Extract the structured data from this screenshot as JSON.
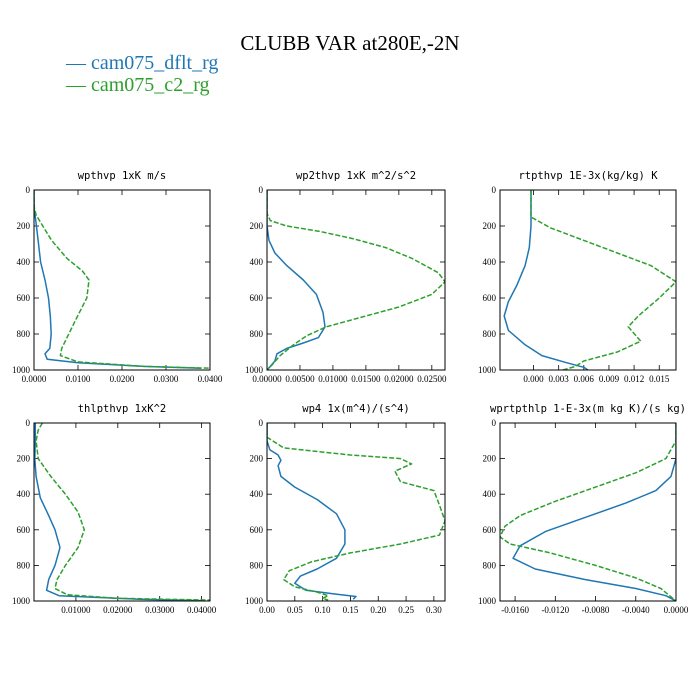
{
  "title": "CLUBB VAR at280E,-2N",
  "legend": [
    {
      "label": "— cam075_dflt_rg",
      "color": "#1f77b4"
    },
    {
      "label": "— cam075_c2_rg",
      "color": "#2ca02c"
    }
  ],
  "chart_data": [
    {
      "type": "line",
      "title": "wpthvp  1xK m/s",
      "xlim": [
        0,
        0.04
      ],
      "ylim": [
        1000,
        0
      ],
      "xticks": [
        0,
        0.01,
        0.02,
        0.03,
        0.04
      ],
      "xtick_labels": [
        "0.0000",
        "0.0100",
        "0.0200",
        "0.0300",
        "0.0400"
      ],
      "yticks": [
        0,
        200,
        400,
        600,
        800,
        1000
      ],
      "ytick_labels": [
        "0",
        "200",
        "400",
        "600",
        "800",
        "1000"
      ],
      "series": [
        {
          "name": "cam075_dflt_rg",
          "color": "#1f77b4",
          "dashed": false,
          "points": [
            [
              0.0,
              0
            ],
            [
              0.0,
              100
            ],
            [
              0.0003,
              150
            ],
            [
              0.0008,
              250
            ],
            [
              0.0015,
              400
            ],
            [
              0.0025,
              500
            ],
            [
              0.0033,
              600
            ],
            [
              0.0037,
              700
            ],
            [
              0.0039,
              800
            ],
            [
              0.0036,
              880
            ],
            [
              0.0025,
              910
            ],
            [
              0.003,
              940
            ],
            [
              0.01,
              960
            ],
            [
              0.025,
              980
            ],
            [
              0.038,
              990
            ]
          ]
        },
        {
          "name": "cam075_c2_rg",
          "color": "#2ca02c",
          "dashed": true,
          "points": [
            [
              0.0,
              0
            ],
            [
              0.0,
              50
            ],
            [
              0.0001,
              100
            ],
            [
              0.0005,
              140
            ],
            [
              0.002,
              200
            ],
            [
              0.004,
              280
            ],
            [
              0.0075,
              380
            ],
            [
              0.011,
              450
            ],
            [
              0.0125,
              500
            ],
            [
              0.012,
              600
            ],
            [
              0.0095,
              720
            ],
            [
              0.0075,
              820
            ],
            [
              0.0063,
              880
            ],
            [
              0.006,
              920
            ],
            [
              0.01,
              955
            ],
            [
              0.025,
              980
            ],
            [
              0.04,
              990
            ]
          ]
        }
      ]
    },
    {
      "type": "line",
      "title": "wp2thvp  1xK m^2/s^2",
      "xlim": [
        0,
        0.027
      ],
      "ylim": [
        1000,
        0
      ],
      "xticks": [
        0,
        0.005,
        0.01,
        0.015,
        0.02,
        0.025
      ],
      "xtick_labels": [
        "0.00000",
        "0.00500",
        "0.01000",
        "0.01500",
        "0.02000",
        "0.02500"
      ],
      "yticks": [
        0,
        200,
        400,
        600,
        800,
        1000
      ],
      "ytick_labels": [
        "0",
        "200",
        "400",
        "600",
        "800",
        "1000"
      ],
      "series": [
        {
          "name": "cam075_dflt_rg",
          "color": "#1f77b4",
          "dashed": false,
          "points": [
            [
              0.0,
              0
            ],
            [
              0.0,
              200
            ],
            [
              0.0003,
              280
            ],
            [
              0.0012,
              350
            ],
            [
              0.003,
              420
            ],
            [
              0.0055,
              500
            ],
            [
              0.0075,
              580
            ],
            [
              0.0085,
              680
            ],
            [
              0.0088,
              760
            ],
            [
              0.0078,
              820
            ],
            [
              0.0055,
              850
            ],
            [
              0.003,
              880
            ],
            [
              0.0015,
              910
            ],
            [
              0.0012,
              950
            ],
            [
              0.0005,
              980
            ],
            [
              0.0,
              1000
            ]
          ]
        },
        {
          "name": "cam075_c2_rg",
          "color": "#2ca02c",
          "dashed": true,
          "points": [
            [
              0.0,
              0
            ],
            [
              0.0,
              130
            ],
            [
              0.0005,
              170
            ],
            [
              0.003,
              200
            ],
            [
              0.008,
              230
            ],
            [
              0.013,
              270
            ],
            [
              0.018,
              320
            ],
            [
              0.022,
              380
            ],
            [
              0.026,
              460
            ],
            [
              0.027,
              510
            ],
            [
              0.025,
              580
            ],
            [
              0.02,
              650
            ],
            [
              0.014,
              710
            ],
            [
              0.009,
              760
            ],
            [
              0.006,
              810
            ],
            [
              0.004,
              860
            ],
            [
              0.002,
              920
            ],
            [
              0.0008,
              970
            ],
            [
              0.0,
              1000
            ]
          ]
        }
      ]
    },
    {
      "type": "line",
      "title": "rtpthvp  1E-3x(kg/kg) K",
      "xlim": [
        -0.004,
        0.017
      ],
      "ylim": [
        1000,
        0
      ],
      "xticks": [
        0,
        0.003,
        0.006,
        0.009,
        0.012,
        0.015
      ],
      "xtick_labels": [
        "0.000",
        "0.003",
        "0.006",
        "0.009",
        "0.012",
        "0.015"
      ],
      "yticks": [
        0,
        200,
        400,
        600,
        800,
        1000
      ],
      "ytick_labels": [
        "0",
        "200",
        "400",
        "600",
        "800",
        "1000"
      ],
      "series": [
        {
          "name": "cam075_dflt_rg",
          "color": "#1f77b4",
          "dashed": false,
          "points": [
            [
              -0.0003,
              0
            ],
            [
              -0.0003,
              200
            ],
            [
              -0.0005,
              320
            ],
            [
              -0.001,
              420
            ],
            [
              -0.002,
              530
            ],
            [
              -0.003,
              620
            ],
            [
              -0.0035,
              700
            ],
            [
              -0.003,
              780
            ],
            [
              -0.001,
              860
            ],
            [
              0.001,
              920
            ],
            [
              0.004,
              960
            ],
            [
              0.006,
              985
            ],
            [
              0.0065,
              1000
            ]
          ]
        },
        {
          "name": "cam075_c2_rg",
          "color": "#2ca02c",
          "dashed": true,
          "points": [
            [
              -0.0003,
              0
            ],
            [
              -0.0003,
              150
            ],
            [
              0.002,
              210
            ],
            [
              0.006,
              280
            ],
            [
              0.01,
              350
            ],
            [
              0.014,
              420
            ],
            [
              0.016,
              480
            ],
            [
              0.017,
              510
            ],
            [
              0.015,
              600
            ],
            [
              0.0125,
              700
            ],
            [
              0.0113,
              760
            ],
            [
              0.0128,
              840
            ],
            [
              0.01,
              900
            ],
            [
              0.006,
              950
            ],
            [
              0.005,
              980
            ],
            [
              0.0035,
              1000
            ]
          ]
        }
      ]
    },
    {
      "type": "line",
      "title": "thlpthvp  1xK^2",
      "xlim": [
        0,
        0.042
      ],
      "ylim": [
        1000,
        0
      ],
      "xticks": [
        0.01,
        0.02,
        0.03,
        0.04
      ],
      "xtick_labels": [
        "0.01000",
        "0.02000",
        "0.03000",
        "0.04000"
      ],
      "yticks": [
        0,
        200,
        400,
        600,
        800,
        1000
      ],
      "ytick_labels": [
        "0",
        "200",
        "400",
        "600",
        "800",
        "1000"
      ],
      "series": [
        {
          "name": "cam075_dflt_rg",
          "color": "#1f77b4",
          "dashed": false,
          "points": [
            [
              0.0003,
              0
            ],
            [
              0.0003,
              100
            ],
            [
              0.0002,
              200
            ],
            [
              0.0005,
              300
            ],
            [
              0.0015,
              420
            ],
            [
              0.0035,
              520
            ],
            [
              0.005,
              600
            ],
            [
              0.0062,
              700
            ],
            [
              0.005,
              800
            ],
            [
              0.0035,
              880
            ],
            [
              0.003,
              940
            ],
            [
              0.006,
              970
            ],
            [
              0.025,
              990
            ],
            [
              0.04,
              998
            ]
          ]
        },
        {
          "name": "cam075_c2_rg",
          "color": "#2ca02c",
          "dashed": true,
          "points": [
            [
              0.002,
              0
            ],
            [
              0.001,
              40
            ],
            [
              0.0005,
              100
            ],
            [
              0.001,
              200
            ],
            [
              0.004,
              300
            ],
            [
              0.0075,
              400
            ],
            [
              0.0105,
              500
            ],
            [
              0.012,
              600
            ],
            [
              0.0105,
              700
            ],
            [
              0.0075,
              800
            ],
            [
              0.0055,
              880
            ],
            [
              0.005,
              930
            ],
            [
              0.008,
              965
            ],
            [
              0.02,
              985
            ],
            [
              0.042,
              995
            ]
          ]
        }
      ]
    },
    {
      "type": "line",
      "title": "wp4  1x(m^4)/(s^4)",
      "xlim": [
        0,
        0.32
      ],
      "ylim": [
        1000,
        0
      ],
      "xticks": [
        0,
        0.05,
        0.1,
        0.15,
        0.2,
        0.25,
        0.3
      ],
      "xtick_labels": [
        "0.00",
        "0.05",
        "0.10",
        "0.15",
        "0.20",
        "0.25",
        "0.30"
      ],
      "yticks": [
        0,
        200,
        400,
        600,
        800,
        1000
      ],
      "ytick_labels": [
        "0",
        "200",
        "400",
        "600",
        "800",
        "1000"
      ],
      "series": [
        {
          "name": "cam075_dflt_rg",
          "color": "#1f77b4",
          "dashed": false,
          "points": [
            [
              0.0,
              0
            ],
            [
              0.0,
              100
            ],
            [
              0.005,
              150
            ],
            [
              0.02,
              180
            ],
            [
              0.025,
              210
            ],
            [
              0.02,
              240
            ],
            [
              0.025,
              300
            ],
            [
              0.05,
              360
            ],
            [
              0.09,
              430
            ],
            [
              0.125,
              510
            ],
            [
              0.14,
              600
            ],
            [
              0.14,
              680
            ],
            [
              0.125,
              760
            ],
            [
              0.09,
              820
            ],
            [
              0.06,
              860
            ],
            [
              0.05,
              900
            ],
            [
              0.07,
              940
            ],
            [
              0.12,
              960
            ],
            [
              0.16,
              975
            ],
            [
              0.155,
              990
            ]
          ]
        },
        {
          "name": "cam075_c2_rg",
          "color": "#2ca02c",
          "dashed": true,
          "points": [
            [
              0.0,
              0
            ],
            [
              0.0,
              80
            ],
            [
              0.03,
              140
            ],
            [
              0.15,
              180
            ],
            [
              0.24,
              200
            ],
            [
              0.26,
              230
            ],
            [
              0.23,
              270
            ],
            [
              0.24,
              330
            ],
            [
              0.3,
              380
            ],
            [
              0.31,
              460
            ],
            [
              0.32,
              550
            ],
            [
              0.31,
              630
            ],
            [
              0.24,
              680
            ],
            [
              0.15,
              730
            ],
            [
              0.08,
              780
            ],
            [
              0.04,
              830
            ],
            [
              0.03,
              880
            ],
            [
              0.05,
              920
            ],
            [
              0.09,
              950
            ],
            [
              0.11,
              970
            ],
            [
              0.1,
              985
            ],
            [
              0.11,
              995
            ]
          ]
        }
      ]
    },
    {
      "type": "line",
      "title": "wprtpthlp  1-E-3x(m kg K)/(s kg)",
      "xlim": [
        -0.0175,
        0.0
      ],
      "ylim": [
        1000,
        0
      ],
      "xticks": [
        -0.016,
        -0.012,
        -0.008,
        -0.004,
        0.0
      ],
      "xtick_labels": [
        "-0.0160",
        "-0.0120",
        "-0.0080",
        "-0.0040",
        "0.0000"
      ],
      "yticks": [
        0,
        200,
        400,
        600,
        800,
        1000
      ],
      "ytick_labels": [
        "0",
        "200",
        "400",
        "600",
        "800",
        "1000"
      ],
      "series": [
        {
          "name": "cam075_dflt_rg",
          "color": "#1f77b4",
          "dashed": false,
          "points": [
            [
              0.0,
              0
            ],
            [
              0.0,
              200
            ],
            [
              -0.0005,
              300
            ],
            [
              -0.002,
              380
            ],
            [
              -0.005,
              450
            ],
            [
              -0.009,
              530
            ],
            [
              -0.013,
              610
            ],
            [
              -0.0155,
              690
            ],
            [
              -0.0162,
              760
            ],
            [
              -0.014,
              820
            ],
            [
              -0.009,
              880
            ],
            [
              -0.004,
              930
            ],
            [
              -0.001,
              970
            ],
            [
              0.0,
              1000
            ]
          ]
        },
        {
          "name": "cam075_c2_rg",
          "color": "#2ca02c",
          "dashed": true,
          "points": [
            [
              0.0,
              0
            ],
            [
              0.0,
              100
            ],
            [
              -0.001,
              200
            ],
            [
              -0.004,
              280
            ],
            [
              -0.008,
              360
            ],
            [
              -0.012,
              440
            ],
            [
              -0.0155,
              520
            ],
            [
              -0.017,
              580
            ],
            [
              -0.0175,
              640
            ],
            [
              -0.0165,
              680
            ],
            [
              -0.0125,
              730
            ],
            [
              -0.008,
              800
            ],
            [
              -0.004,
              870
            ],
            [
              -0.0015,
              930
            ],
            [
              0.0,
              1000
            ]
          ]
        }
      ]
    }
  ]
}
